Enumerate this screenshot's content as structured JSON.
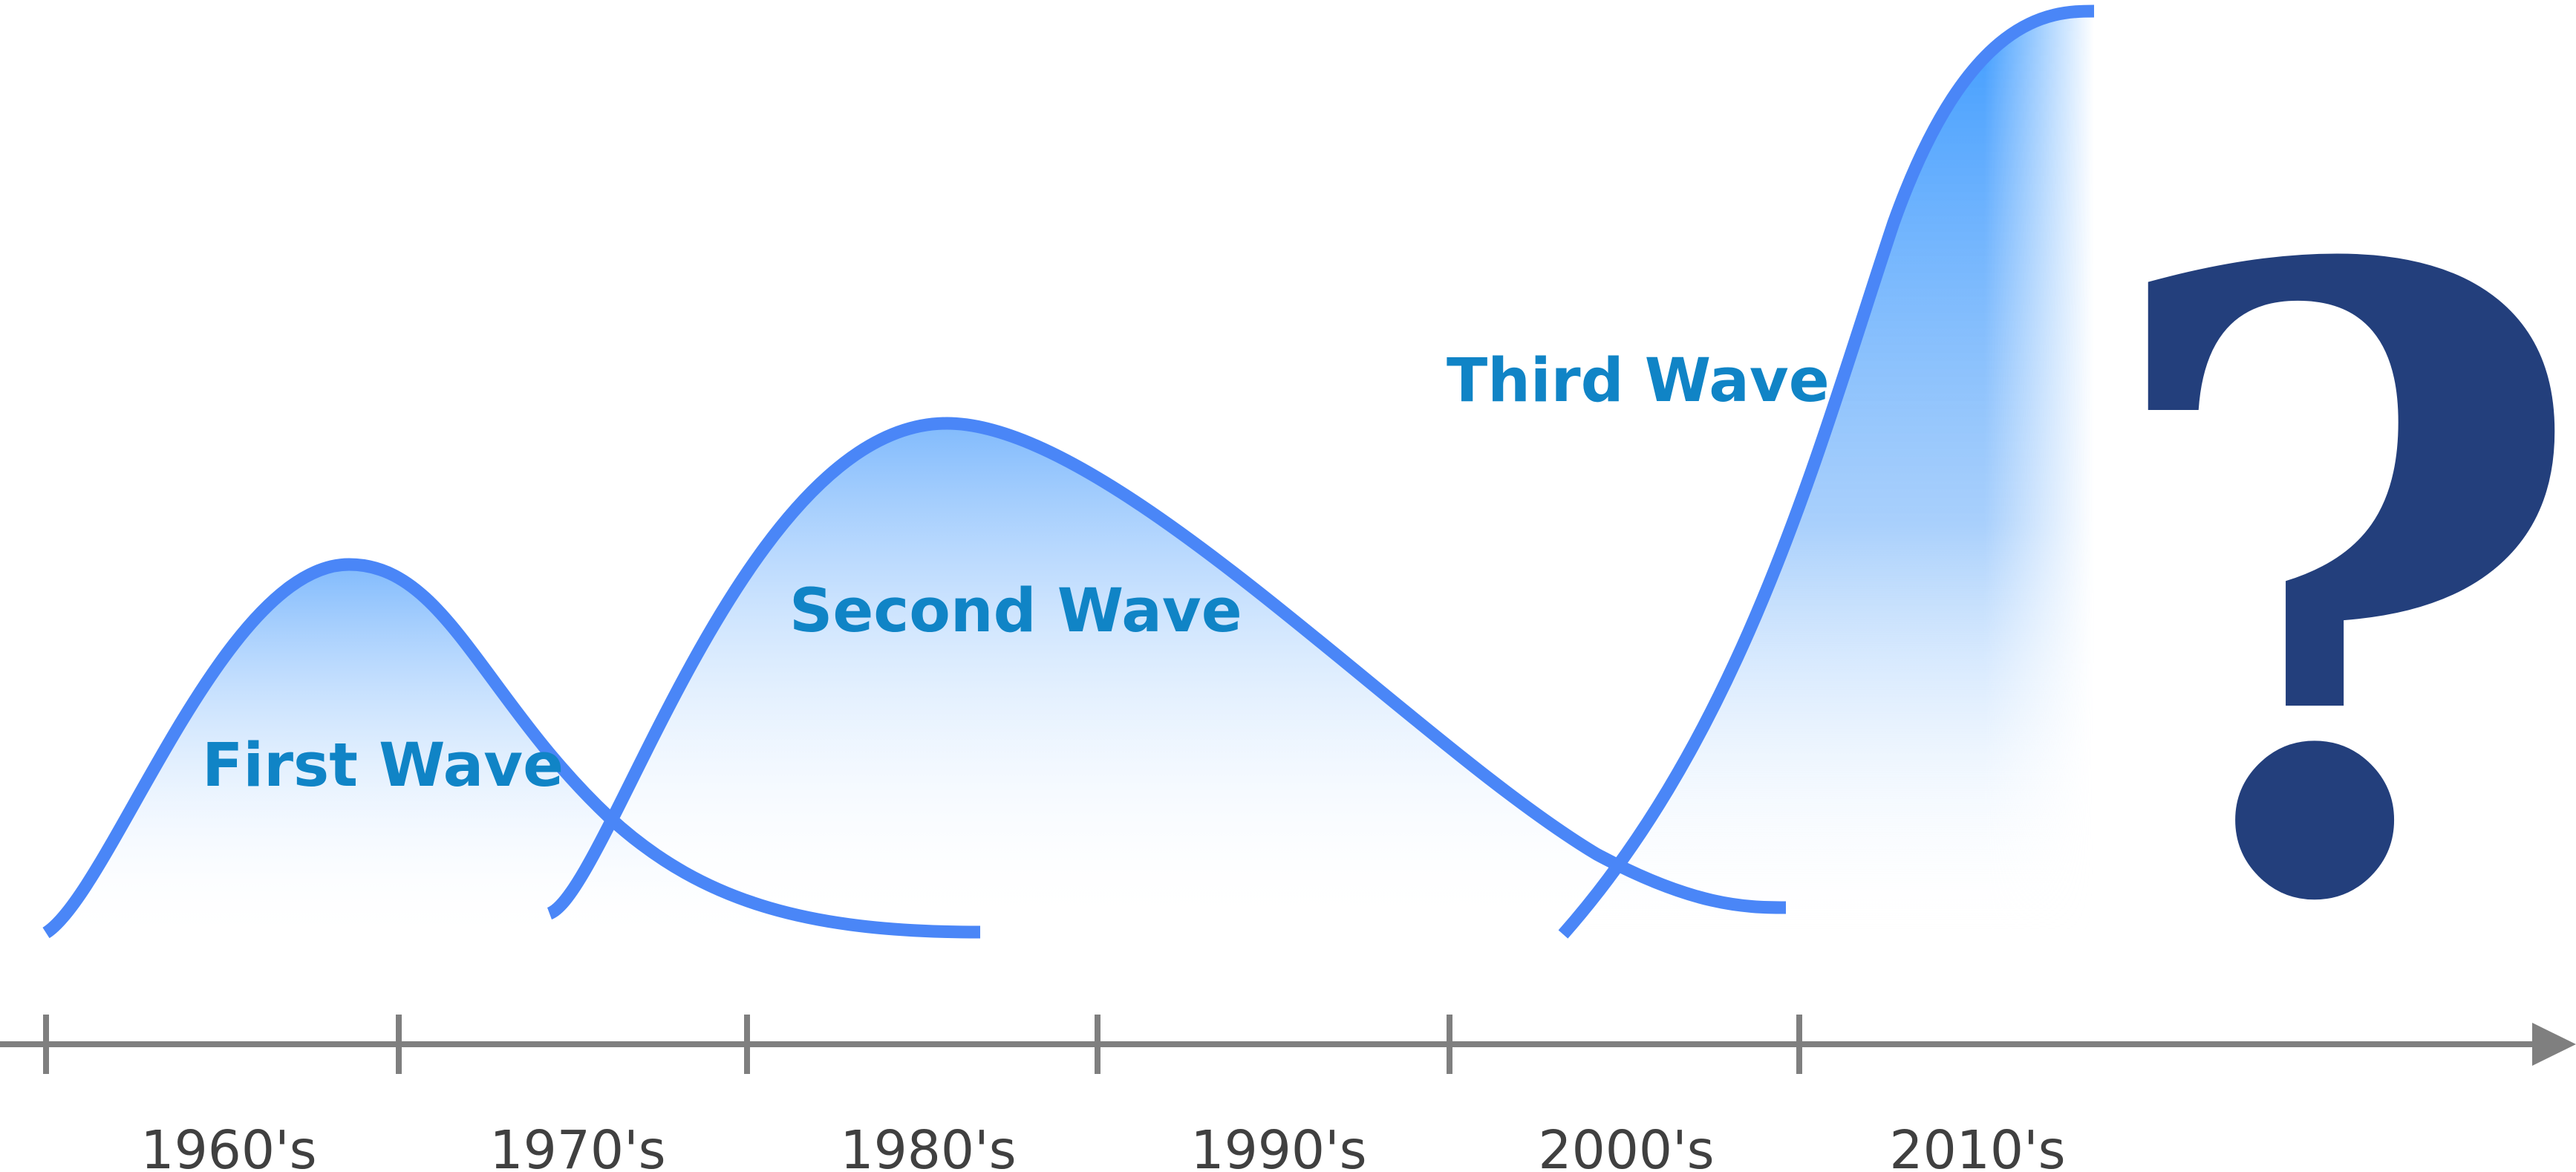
{
  "colors": {
    "curve": "#4a86f7",
    "fill_top": "#3f9cff",
    "label": "#1084c6",
    "axis": "#7f7f7f",
    "decade_text": "#404040",
    "question_mark": "#233f7c"
  },
  "waves": [
    {
      "label": "First Wave"
    },
    {
      "label": "Second Wave"
    },
    {
      "label": "Third Wave"
    }
  ],
  "timeline": {
    "decades": [
      "1960's",
      "1970's",
      "1980's",
      "1990's",
      "2000's",
      "2010's"
    ]
  },
  "question_mark": "?"
}
